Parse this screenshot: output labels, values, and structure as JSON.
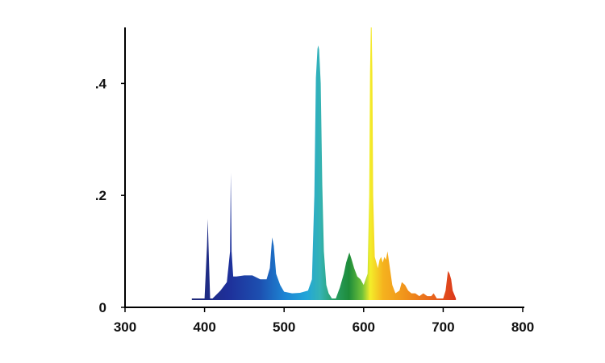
{
  "chart_data": {
    "type": "area",
    "title": "",
    "xlabel": "",
    "ylabel": "",
    "xlim": [
      300,
      800
    ],
    "ylim": [
      0,
      0.5
    ],
    "grid": false,
    "legend": "none",
    "x_ticks": [
      {
        "value": 300,
        "label": "300"
      },
      {
        "value": 400,
        "label": "400"
      },
      {
        "value": 500,
        "label": "500"
      },
      {
        "value": 600,
        "label": "600"
      },
      {
        "value": 700,
        "label": "700"
      },
      {
        "value": 800,
        "label": "800"
      }
    ],
    "y_ticks": [
      {
        "value": 0,
        "label": "0"
      },
      {
        "value": 0.2,
        "label": ".2"
      },
      {
        "value": 0.4,
        "label": ".4"
      }
    ],
    "fill": "spectrum gradient (violet→blue→cyan→green→yellow→orange→red)",
    "series": [
      {
        "x": [
          384,
          395,
          400,
          403,
          404,
          405,
          407,
          410,
          420,
          428,
          432,
          433,
          434,
          436,
          440,
          450,
          460,
          470,
          478,
          482,
          485,
          487,
          490,
          495,
          500,
          510,
          520,
          530,
          535,
          538,
          540,
          542,
          543,
          544,
          546,
          548,
          550,
          553,
          556,
          560,
          565,
          570,
          575,
          578,
          582,
          585,
          588,
          592,
          596,
          600,
          605,
          607,
          608,
          609,
          610,
          611,
          612,
          614,
          618,
          620,
          622,
          624,
          626,
          628,
          630,
          632,
          636,
          640,
          645,
          648,
          652,
          656,
          660,
          665,
          670,
          675,
          680,
          685,
          688,
          692,
          696,
          700,
          703,
          706,
          708,
          710,
          712,
          716
        ],
        "y": [
          0.01,
          0.01,
          0.015,
          0.11,
          0.158,
          0.11,
          0.015,
          0.015,
          0.03,
          0.045,
          0.1,
          0.24,
          0.1,
          0.055,
          0.055,
          0.057,
          0.057,
          0.05,
          0.05,
          0.07,
          0.125,
          0.11,
          0.06,
          0.04,
          0.028,
          0.025,
          0.026,
          0.03,
          0.05,
          0.2,
          0.41,
          0.462,
          0.468,
          0.46,
          0.4,
          0.22,
          0.1,
          0.04,
          0.025,
          0.015,
          0.012,
          0.035,
          0.06,
          0.08,
          0.098,
          0.085,
          0.07,
          0.055,
          0.05,
          0.04,
          0.06,
          0.2,
          0.42,
          0.5,
          0.5,
          0.42,
          0.2,
          0.09,
          0.07,
          0.085,
          0.09,
          0.08,
          0.09,
          0.085,
          0.1,
          0.08,
          0.04,
          0.025,
          0.03,
          0.045,
          0.04,
          0.03,
          0.025,
          0.025,
          0.02,
          0.025,
          0.02,
          0.02,
          0.025,
          0.015,
          0.015,
          0.015,
          0.03,
          0.065,
          0.06,
          0.05,
          0.03,
          0.01
        ]
      }
    ]
  }
}
